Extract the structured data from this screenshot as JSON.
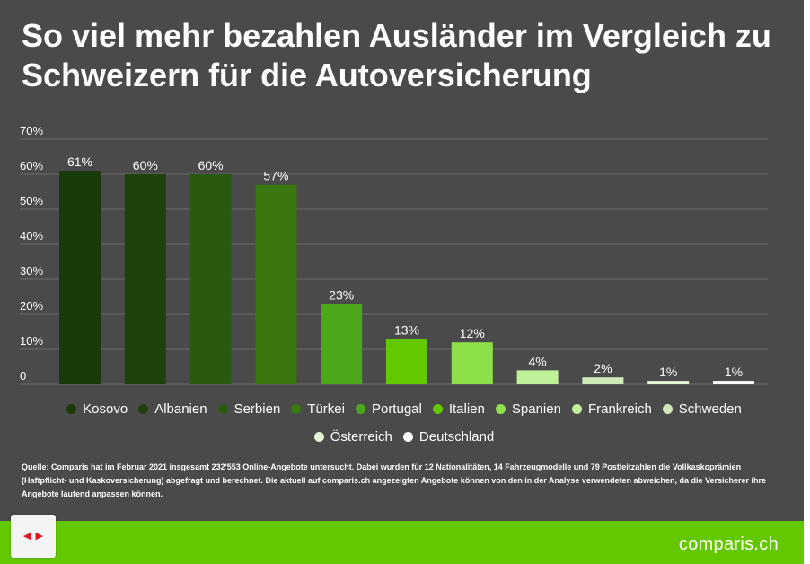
{
  "title": "So viel mehr bezahlen Ausländer im Vergleich zu Schweizern für die Autoversicherung",
  "chart_data": {
    "type": "bar",
    "categories": [
      "Kosovo",
      "Albanien",
      "Serbien",
      "Türkei",
      "Portugal",
      "Italien",
      "Spanien",
      "Frankreich",
      "Schweden",
      "Österreich",
      "Deutschland"
    ],
    "values": [
      61,
      60,
      60,
      57,
      23,
      13,
      12,
      4,
      2,
      1,
      1
    ],
    "value_labels": [
      "61%",
      "60%",
      "60%",
      "57%",
      "23%",
      "13%",
      "12%",
      "4%",
      "2%",
      "1%",
      "1%"
    ],
    "colors": [
      "#1a3a0a",
      "#1f420d",
      "#2a5a10",
      "#38780f",
      "#4ca81a",
      "#64c800",
      "#8ee04a",
      "#bff09a",
      "#cfeab8",
      "#e2f6d6",
      "#ffffff"
    ],
    "ylim": [
      0,
      70
    ],
    "yticks": [
      0,
      10,
      20,
      30,
      40,
      50,
      60,
      70
    ],
    "ytick_labels": [
      "0",
      "10%",
      "20%",
      "30%",
      "40%",
      "50%",
      "60%",
      "70%"
    ],
    "grid": true,
    "legend_placement": "bottom"
  },
  "source": "Quelle: Comparis hat im Februar 2021 insgesamt 232'553 Online-Angebote untersucht. Dabei wurden für 12 Nationalitäten, 14 Fahrzeugmodelle und 79 Postleitzahlen die Vollkaskoprämien (Haftpflicht- und Kaskoversicherung) abgefragt und berechnet. Die aktuell auf comparis.ch angezeigten Angebote können von den in der Analyse verwendeten abweichen, da die Versicherer ihre Angebote laufend anpassen können.",
  "brand": "comparis.ch",
  "nav": {
    "prev_icon": "◀",
    "next_icon": "▶"
  },
  "colors": {
    "background": "#4a4a4a",
    "footer": "#64c800",
    "text": "#ffffff",
    "arrow": "#e0141e"
  }
}
